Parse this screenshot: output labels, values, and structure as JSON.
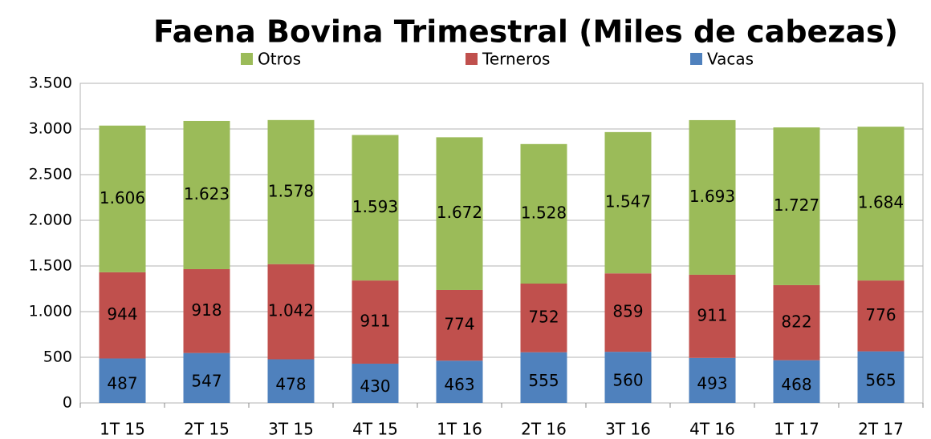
{
  "chart_data": {
    "type": "bar",
    "stacked": true,
    "title": "Faena Bovina Trimestral (Miles de cabezas)",
    "categories": [
      "1T 15",
      "2T 15",
      "3T 15",
      "4T 15",
      "1T 16",
      "2T 16",
      "3T 16",
      "4T 16",
      "1T 17",
      "2T 17"
    ],
    "series": [
      {
        "name": "Vacas",
        "color": "#4f81bd",
        "values": [
          487,
          547,
          478,
          430,
          463,
          555,
          560,
          493,
          468,
          565
        ]
      },
      {
        "name": "Terneros",
        "color": "#c0504d",
        "values": [
          944,
          918,
          1042,
          911,
          774,
          752,
          859,
          911,
          822,
          776
        ],
        "value_labels": [
          "944",
          "918",
          "1.042",
          "911",
          "774",
          "752",
          "859",
          "911",
          "822",
          "776"
        ]
      },
      {
        "name": "Otros",
        "color": "#9bbb59",
        "values": [
          1606,
          1623,
          1578,
          1593,
          1672,
          1528,
          1547,
          1693,
          1727,
          1684
        ],
        "value_labels": [
          "1.606",
          "1.623",
          "1.578",
          "1.593",
          "1.672",
          "1.528",
          "1.547",
          "1.693",
          "1.727",
          "1.684"
        ]
      }
    ],
    "ylim": [
      0,
      3500
    ],
    "yticks": [
      0,
      500,
      {
        "value": 1000,
        "label": "1.000"
      },
      {
        "value": 1500,
        "label": "1.500"
      },
      {
        "value": 2000,
        "label": "2.000"
      },
      {
        "value": 2500,
        "label": "2.500"
      },
      {
        "value": 3000,
        "label": "3.000"
      },
      {
        "value": 3500,
        "label": "3.500"
      }
    ],
    "grid": true,
    "legend": "top"
  }
}
